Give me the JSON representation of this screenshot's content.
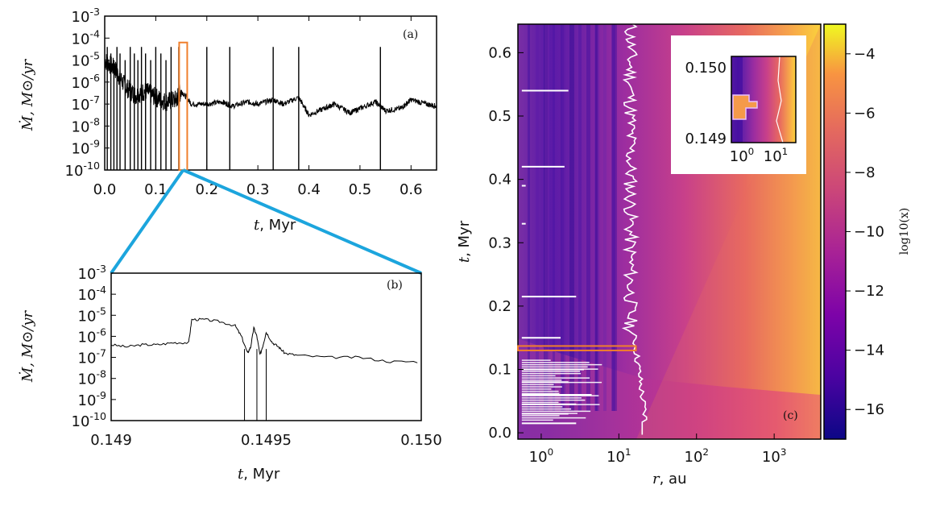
{
  "colors": {
    "orange": "#f07f2c",
    "cyan": "#1ca5dd",
    "white": "#ffffff",
    "axis": "#000000"
  },
  "chart_data": [
    {
      "panel_label": "(a)",
      "type": "line",
      "xlabel_var": "t",
      "xlabel_unit": ", Myr",
      "ylabel": "Ṁ, M⊙/yr",
      "xlim": [
        0.0,
        0.65
      ],
      "ylim_log10": [
        -10,
        -3
      ],
      "xticks": [
        "0.0",
        "0.1",
        "0.2",
        "0.3",
        "0.4",
        "0.5",
        "0.6"
      ],
      "yticks": [
        "10-3",
        "10-4",
        "10-5",
        "10-6",
        "10-7",
        "10-8",
        "10-9",
        "10-10"
      ],
      "highlight_x": [
        0.149,
        0.15
      ],
      "series": [
        {
          "name": "accretion rate",
          "x": [
            0.0,
            0.02,
            0.04,
            0.06,
            0.08,
            0.1,
            0.12,
            0.14,
            0.15,
            0.17,
            0.2,
            0.23,
            0.25,
            0.28,
            0.3,
            0.33,
            0.35,
            0.38,
            0.4,
            0.43,
            0.45,
            0.48,
            0.5,
            0.53,
            0.55,
            0.58,
            0.6,
            0.63,
            0.65
          ],
          "log10": [
            -5.0,
            -5.4,
            -6.2,
            -6.6,
            -6.4,
            -6.7,
            -6.9,
            -6.8,
            -6.4,
            -7.0,
            -7.0,
            -6.9,
            -7.1,
            -6.9,
            -7.0,
            -6.8,
            -7.0,
            -6.7,
            -7.5,
            -7.2,
            -7.0,
            -7.4,
            -7.2,
            -6.9,
            -7.3,
            -7.2,
            -6.8,
            -7.0,
            -7.1
          ]
        }
      ],
      "spikes_x": [
        0.005,
        0.012,
        0.018,
        0.024,
        0.03,
        0.04,
        0.05,
        0.058,
        0.065,
        0.072,
        0.08,
        0.09,
        0.1,
        0.11,
        0.12,
        0.13,
        0.145,
        0.2,
        0.245,
        0.33,
        0.38,
        0.54
      ]
    },
    {
      "panel_label": "(b)",
      "type": "line",
      "xlabel_var": "t",
      "xlabel_unit": ", Myr",
      "ylabel": "Ṁ, M⊙/yr",
      "xlim": [
        0.149,
        0.15
      ],
      "ylim_log10": [
        -10,
        -3
      ],
      "xticks": [
        "0.149",
        "0.1495",
        "0.150"
      ],
      "yticks": [
        "10-3",
        "10-4",
        "10-5",
        "10-6",
        "10-7",
        "10-8",
        "10-9",
        "10-10"
      ],
      "series": [
        {
          "name": "accretion rate zoom",
          "x": [
            0.149,
            0.14905,
            0.1491,
            0.14915,
            0.1492,
            0.14925,
            0.14926,
            0.1493,
            0.14935,
            0.1494,
            0.14942,
            0.14944,
            0.14945,
            0.14946,
            0.14947,
            0.14948,
            0.14949,
            0.1495,
            0.14952,
            0.14954,
            0.14956,
            0.1496,
            0.1497,
            0.1498,
            0.1499,
            0.15
          ],
          "log10": [
            -6.4,
            -6.5,
            -6.4,
            -6.4,
            -6.3,
            -6.3,
            -5.2,
            -5.2,
            -5.3,
            -5.5,
            -6.0,
            -6.8,
            -6.5,
            -5.6,
            -6.0,
            -6.9,
            -6.4,
            -5.8,
            -6.3,
            -6.5,
            -6.8,
            -6.9,
            -7.0,
            -7.0,
            -7.2,
            -7.2
          ]
        }
      ],
      "dips_x": [
        0.14943,
        0.14947,
        0.1495
      ]
    },
    {
      "panel_label": "(c)",
      "type": "heatmap",
      "xlabel_var": "r",
      "xlabel_unit": ", au",
      "ylabel_var": "t",
      "ylabel_unit": ", Myr",
      "xlim_log10": [
        -0.3,
        3.6
      ],
      "ylim": [
        -0.01,
        0.645
      ],
      "xticks": [
        "100",
        "101",
        "102",
        "103"
      ],
      "yticks": [
        "0.0",
        "0.1",
        "0.2",
        "0.3",
        "0.4",
        "0.5",
        "0.6"
      ],
      "colorbar_label": "log10(x)",
      "colorbar_range": [
        -17,
        -3
      ],
      "colorbar_ticks": [
        "−4",
        "−6",
        "−8",
        "−10",
        "−12",
        "−14",
        "−16"
      ],
      "highlight_t": [
        0.13,
        0.137
      ],
      "highlight_r_log10": [
        -0.3,
        1.22
      ],
      "inset": {
        "yticks": [
          "0.150",
          "0.149"
        ],
        "xticks": [
          "100",
          "101"
        ]
      }
    }
  ]
}
